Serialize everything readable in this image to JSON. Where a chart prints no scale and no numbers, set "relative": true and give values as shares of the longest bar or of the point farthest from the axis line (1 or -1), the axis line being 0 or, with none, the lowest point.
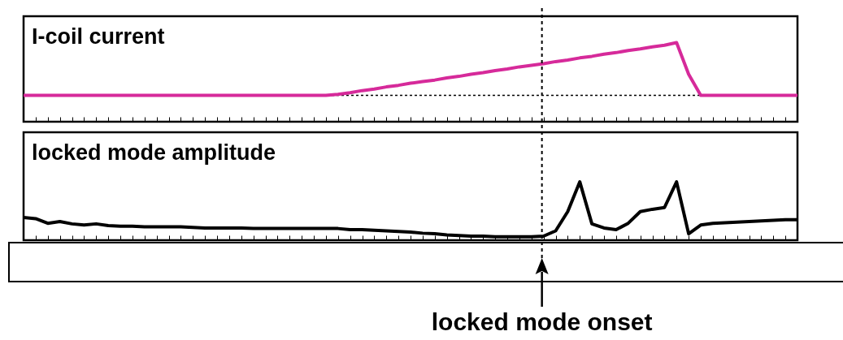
{
  "chart_data": [
    {
      "type": "line",
      "title": "I-coil current",
      "relative": true,
      "tick_labels": false,
      "categories": [
        null,
        null,
        null,
        null,
        null,
        null,
        null,
        null,
        null,
        null,
        null,
        null,
        null,
        null,
        null,
        null,
        null,
        null,
        null,
        null,
        null,
        null,
        null,
        null,
        null,
        null,
        null,
        null,
        null,
        null,
        null,
        null,
        null,
        null,
        null,
        null,
        null,
        null,
        null,
        null,
        null,
        null,
        null,
        null,
        null,
        null,
        null,
        null,
        null,
        null,
        null,
        null,
        null,
        null,
        null,
        null,
        null,
        null,
        null,
        null,
        null,
        null,
        null,
        null,
        null
      ],
      "series": [
        {
          "color": "#d62a9a",
          "values": [
            0,
            0,
            0,
            0,
            0,
            0,
            0,
            0,
            0,
            0,
            0,
            0,
            0,
            0,
            0,
            0,
            0,
            0,
            0,
            0,
            0,
            0,
            0,
            0,
            0,
            0,
            0.02,
            0.05,
            0.09,
            0.12,
            0.16,
            0.19,
            0.23,
            0.26,
            0.29,
            0.33,
            0.36,
            0.4,
            0.43,
            0.47,
            0.5,
            0.54,
            0.57,
            0.6,
            0.64,
            0.67,
            0.71,
            0.74,
            0.78,
            0.81,
            0.85,
            0.88,
            0.92,
            0.95,
            1,
            0.4,
            0,
            0,
            0,
            0,
            0,
            0,
            0,
            0,
            0
          ]
        }
      ],
      "ref_lines": [
        {
          "axis": "y",
          "value": 0,
          "color": "#000000",
          "line_style": "dotted"
        }
      ]
    },
    {
      "type": "line",
      "title": "locked mode amplitude",
      "relative": true,
      "tick_labels": false,
      "annotations": [
        "locked mode onset"
      ],
      "categories": [
        null,
        null,
        null,
        null,
        null,
        null,
        null,
        null,
        null,
        null,
        null,
        null,
        null,
        null,
        null,
        null,
        null,
        null,
        null,
        null,
        null,
        null,
        null,
        null,
        null,
        null,
        null,
        null,
        null,
        null,
        null,
        null,
        null,
        null,
        null,
        null,
        null,
        null,
        null,
        null,
        null,
        null,
        null,
        null,
        null,
        null,
        null,
        null,
        null,
        null,
        null,
        null,
        null,
        null,
        null,
        null,
        null,
        null,
        null,
        null,
        null,
        null,
        null,
        null,
        null
      ],
      "series": [
        {
          "color": "#000000",
          "values": [
            0.39,
            0.37,
            0.29,
            0.32,
            0.28,
            0.26,
            0.28,
            0.25,
            0.24,
            0.24,
            0.23,
            0.23,
            0.23,
            0.23,
            0.22,
            0.21,
            0.21,
            0.21,
            0.21,
            0.2,
            0.2,
            0.2,
            0.2,
            0.2,
            0.2,
            0.2,
            0.2,
            0.18,
            0.18,
            0.17,
            0.16,
            0.15,
            0.14,
            0.12,
            0.11,
            0.09,
            0.08,
            0.07,
            0.07,
            0.06,
            0.06,
            0.06,
            0.06,
            0.07,
            0.16,
            0.49,
            1,
            0.28,
            0.21,
            0.18,
            0.29,
            0.49,
            0.53,
            0.56,
            1,
            0.11,
            0.26,
            0.29,
            0.3,
            0.31,
            0.32,
            0.33,
            0.34,
            0.35,
            0.35
          ]
        }
      ]
    }
  ]
}
